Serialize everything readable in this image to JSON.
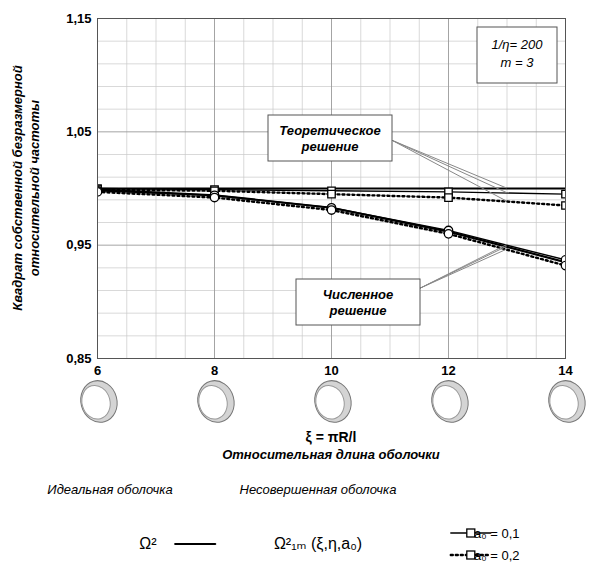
{
  "chart_data": {
    "type": "line",
    "ylabel": "Квадрат собственной безразмерной относительной частоты",
    "xlabel": "ξ = πR/l",
    "xlabel_subtitle": "Относительная длина оболочки",
    "parameters": [
      "1/η= 200",
      "m = 3"
    ],
    "x": [
      6,
      8,
      10,
      12,
      14
    ],
    "xlim": [
      6,
      14
    ],
    "xticks": [
      6,
      8,
      10,
      12,
      14
    ],
    "ylim": [
      0.85,
      1.15
    ],
    "yticks": [
      {
        "value": 0.85,
        "label": "0,85"
      },
      {
        "value": 0.95,
        "label": "0,95"
      },
      {
        "value": 1.05,
        "label": "1,05"
      },
      {
        "value": 1.15,
        "label": "1,15"
      }
    ],
    "grid": true,
    "legend": "bottom",
    "annotations": [
      "Теоретическое решение",
      "Численное решение"
    ],
    "legend_groups": [
      {
        "title": "Идеальная оболочка",
        "label": "Ω²",
        "names": [
          "Ω²"
        ]
      },
      {
        "title": "Несовершенная оболочка",
        "label": "Ω²₁ₘ (ξ,η,a₀)",
        "names": [
          "a₀ = 0,1",
          "a₀ = 0,2"
        ]
      }
    ],
    "series": [
      {
        "name": "Ω²",
        "group": "Теоретическое решение",
        "color": "#000000",
        "line_style": "solid",
        "marker": "none",
        "values": [
          1.0,
          1.0,
          1.0,
          1.0,
          1.0
        ]
      },
      {
        "name": "a₀ = 0,1",
        "group": "Теоретическое решение",
        "color": "#000000",
        "line_style": "solid",
        "marker": "square",
        "values": [
          1.0,
          0.999,
          0.998,
          0.997,
          0.995
        ]
      },
      {
        "name": "a₀ = 0,2",
        "group": "Теоретическое решение",
        "color": "#000000",
        "line_style": "dotted",
        "marker": "square",
        "values": [
          0.999,
          0.998,
          0.995,
          0.992,
          0.985
        ]
      },
      {
        "name": "Ω²",
        "group": "Численное решение",
        "color": "#000000",
        "line_style": "solid",
        "marker": "none",
        "values": [
          0.999,
          0.994,
          0.983,
          0.962,
          0.935
        ]
      },
      {
        "name": "a₀ = 0,1",
        "group": "Численное решение",
        "color": "#000000",
        "line_style": "solid",
        "marker": "circle",
        "values": [
          0.998,
          0.994,
          0.983,
          0.963,
          0.937
        ]
      },
      {
        "name": "a₀ = 0,2",
        "group": "Численное решение",
        "color": "#000000",
        "line_style": "dotted",
        "marker": "circle",
        "values": [
          0.997,
          0.992,
          0.981,
          0.96,
          0.932
        ]
      }
    ]
  }
}
